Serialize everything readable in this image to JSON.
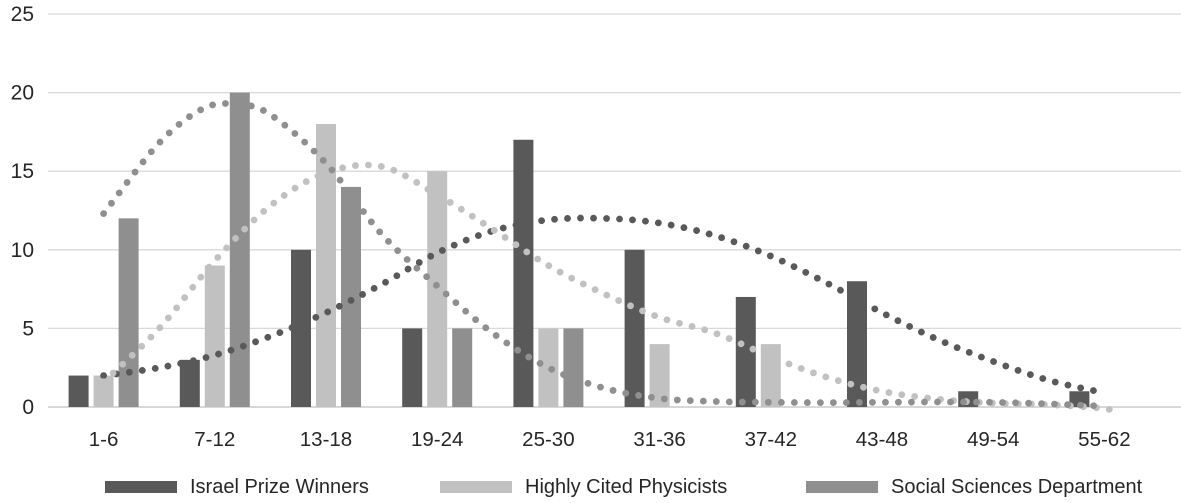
{
  "chart_data": {
    "type": "bar",
    "subtype": "grouped-bars-with-dotted-polynomial-trendlines",
    "title": "",
    "xlabel": "",
    "ylabel": "",
    "categories": [
      "1-6",
      "7-12",
      "13-18",
      "19-24",
      "25-30",
      "31-36",
      "37-42",
      "43-48",
      "49-54",
      "55-62"
    ],
    "series": [
      {
        "name": "Israel Prize Winners",
        "color": "#595959",
        "values": [
          2,
          3,
          10,
          5,
          17,
          10,
          7,
          8,
          1,
          1
        ],
        "trend": [
          [
            0,
            2.0
          ],
          [
            0.5,
            2.5
          ],
          [
            1,
            3.3
          ],
          [
            1.5,
            4.5
          ],
          [
            2,
            6.0
          ],
          [
            2.5,
            7.8
          ],
          [
            3,
            9.8
          ],
          [
            3.5,
            11.2
          ],
          [
            4,
            11.9
          ],
          [
            4.5,
            12.0
          ],
          [
            5,
            11.7
          ],
          [
            5.5,
            10.9
          ],
          [
            6,
            9.6
          ],
          [
            6.5,
            7.9
          ],
          [
            7,
            6.0
          ],
          [
            7.5,
            4.3
          ],
          [
            8,
            2.9
          ],
          [
            8.5,
            1.7
          ],
          [
            9,
            0.9
          ]
        ]
      },
      {
        "name": "Highly Cited Physicists",
        "color": "#c1c1c1",
        "values": [
          2,
          9,
          18,
          15,
          5,
          4,
          4,
          0,
          0,
          0
        ],
        "trend": [
          [
            0,
            1.6
          ],
          [
            0.5,
            5.0
          ],
          [
            1,
            9.3
          ],
          [
            1.5,
            12.8
          ],
          [
            2,
            14.9
          ],
          [
            2.5,
            15.3
          ],
          [
            3,
            13.5
          ],
          [
            3.5,
            11.3
          ],
          [
            4,
            9.0
          ],
          [
            4.5,
            7.2
          ],
          [
            5,
            5.7
          ],
          [
            5.5,
            4.7
          ],
          [
            6,
            3.2
          ],
          [
            6.5,
            1.9
          ],
          [
            7,
            1.0
          ],
          [
            7.5,
            0.5
          ],
          [
            8,
            0.25
          ],
          [
            8.5,
            0.15
          ],
          [
            9,
            -0.1
          ],
          [
            9.15,
            -0.45
          ]
        ]
      },
      {
        "name": "Social Sciences Department",
        "color": "#8f8f8f",
        "values": [
          12,
          20,
          14,
          5,
          5,
          0,
          0,
          0,
          0,
          0
        ],
        "trend": [
          [
            0,
            12.3
          ],
          [
            0.5,
            16.8
          ],
          [
            0.9,
            19.0
          ],
          [
            1.2,
            19.25
          ],
          [
            1.5,
            18.6
          ],
          [
            2,
            15.5
          ],
          [
            2.5,
            11.0
          ],
          [
            3,
            7.7
          ],
          [
            3.5,
            4.7
          ],
          [
            4,
            2.5
          ],
          [
            4.5,
            1.2
          ],
          [
            5,
            0.55
          ],
          [
            5.5,
            0.35
          ],
          [
            6,
            0.3
          ],
          [
            6.5,
            0.28
          ],
          [
            7,
            0.3
          ],
          [
            7.5,
            0.32
          ],
          [
            8,
            0.3
          ],
          [
            8.5,
            0.2
          ],
          [
            9,
            0.05
          ]
        ]
      }
    ],
    "y_axis": {
      "min": 0,
      "max": 25,
      "step": 5,
      "ticks": [
        0,
        5,
        10,
        15,
        20,
        25
      ]
    },
    "grid": true,
    "legend_position": "bottom",
    "colors": {
      "gridline": "#d9d9d9",
      "axis_line": "#c0c0c0",
      "tick_text": "#262626",
      "background": "#ffffff"
    }
  }
}
